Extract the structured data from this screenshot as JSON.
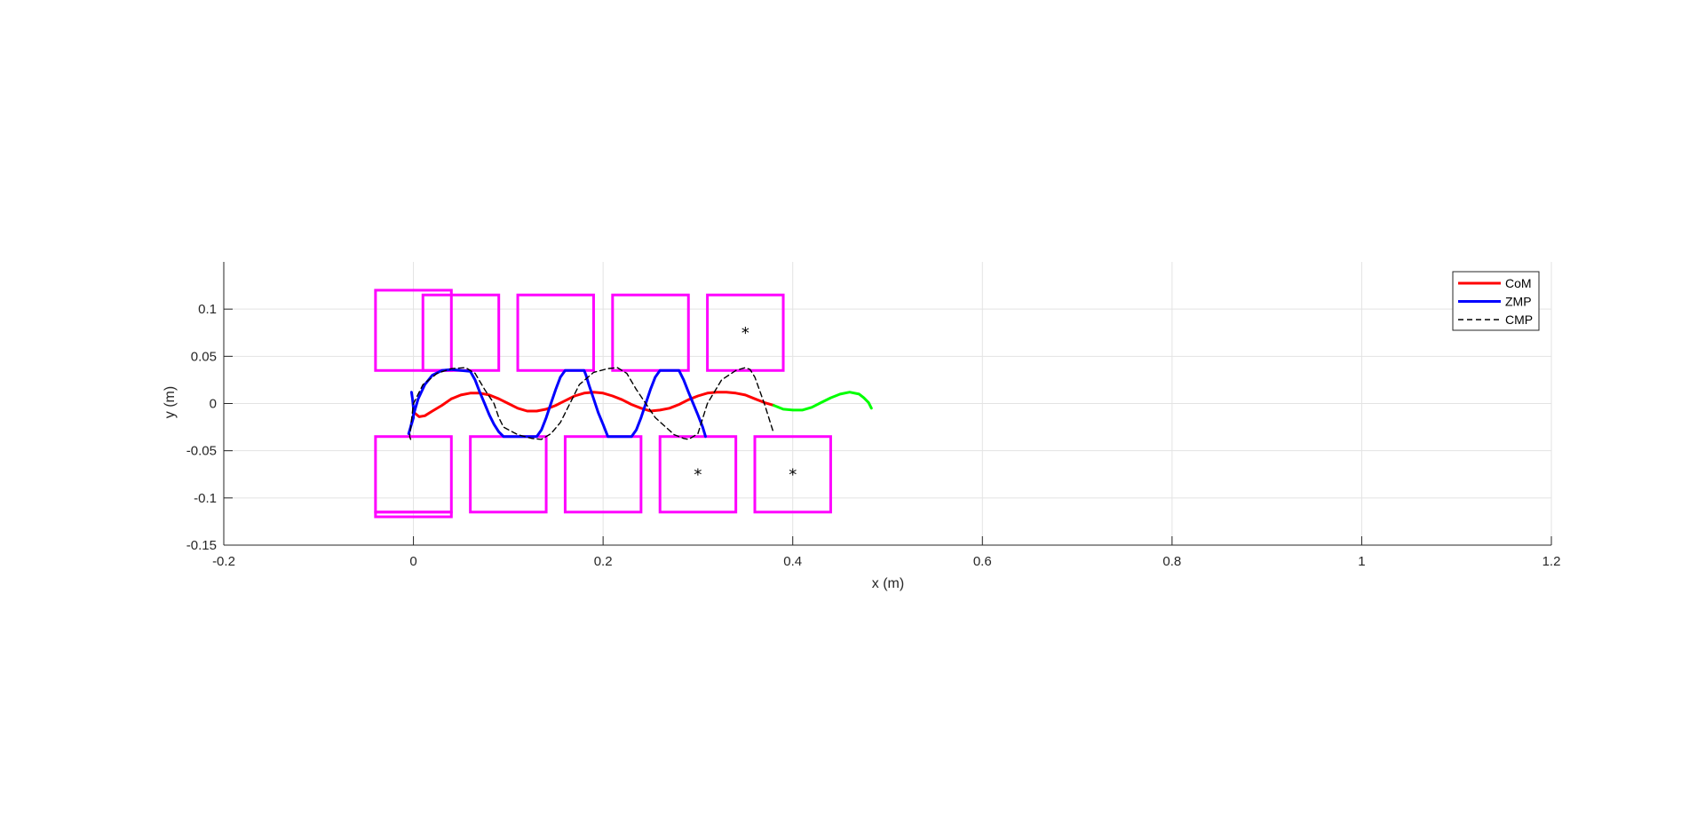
{
  "chart_data": {
    "type": "line",
    "xlabel": "x (m)",
    "ylabel": "y (m)",
    "xlim": [
      -0.2,
      1.2
    ],
    "ylim": [
      -0.15,
      0.15
    ],
    "x_ticks": [
      -0.2,
      0,
      0.2,
      0.4,
      0.6,
      0.8,
      1,
      1.2
    ],
    "x_tick_labels": [
      "-0.2",
      "0",
      "0.2",
      "0.4",
      "0.6",
      "0.8",
      "1",
      "1.2"
    ],
    "y_ticks": [
      0.1,
      0.05,
      0,
      -0.05,
      -0.1,
      -0.15
    ],
    "y_tick_labels": [
      "0.1",
      "0.05",
      "0",
      "-0.05",
      "-0.1",
      "-0.15"
    ],
    "grid": true,
    "legend_position": "top-right",
    "legend": [
      {
        "label": "CoM",
        "color": "#ff0000",
        "style": "solid"
      },
      {
        "label": "ZMP",
        "color": "#0000ff",
        "style": "solid"
      },
      {
        "label": "CMP",
        "color": "#000000",
        "style": "dashed"
      }
    ],
    "colors": {
      "com": "#ff0000",
      "com_preview": "#00ff00",
      "zmp": "#0000ff",
      "cmp": "#000000",
      "footprint": "#ff00ff",
      "marker": "#000000"
    },
    "series": [
      {
        "name": "CoM",
        "type": "line",
        "color": "#ff0000",
        "style": "solid",
        "x": [
          0.0,
          0.006,
          0.012,
          0.02,
          0.03,
          0.04,
          0.05,
          0.06,
          0.07,
          0.08,
          0.09,
          0.1,
          0.11,
          0.12,
          0.13,
          0.14,
          0.15,
          0.16,
          0.17,
          0.18,
          0.19,
          0.2,
          0.21,
          0.22,
          0.23,
          0.24,
          0.25,
          0.26,
          0.27,
          0.28,
          0.29,
          0.3,
          0.31,
          0.32,
          0.33,
          0.34,
          0.35,
          0.36,
          0.37,
          0.38
        ],
        "y": [
          -0.009,
          -0.014,
          -0.013,
          -0.008,
          -0.002,
          0.005,
          0.009,
          0.011,
          0.011,
          0.009,
          0.005,
          0.0,
          -0.005,
          -0.008,
          -0.008,
          -0.006,
          -0.002,
          0.003,
          0.008,
          0.011,
          0.012,
          0.011,
          0.008,
          0.004,
          -0.001,
          -0.005,
          -0.008,
          -0.007,
          -0.005,
          -0.001,
          0.004,
          0.008,
          0.011,
          0.012,
          0.012,
          0.011,
          0.009,
          0.005,
          0.001,
          -0.002
        ]
      },
      {
        "name": "CoM preview",
        "type": "line",
        "color": "#00ff00",
        "style": "solid",
        "x": [
          0.38,
          0.39,
          0.4,
          0.41,
          0.42,
          0.43,
          0.44,
          0.45,
          0.46,
          0.47,
          0.475,
          0.48,
          0.483
        ],
        "y": [
          -0.002,
          -0.006,
          -0.007,
          -0.007,
          -0.004,
          0.001,
          0.006,
          0.01,
          0.012,
          0.01,
          0.006,
          0.001,
          -0.005
        ]
      },
      {
        "name": "ZMP",
        "type": "line",
        "color": "#0000ff",
        "style": "solid",
        "x": [
          -0.002,
          -0.001,
          0.0,
          0.0,
          -0.003,
          -0.005,
          -0.003,
          0.0,
          0.005,
          0.012,
          0.02,
          0.03,
          0.04,
          0.05,
          0.06,
          0.065,
          0.07,
          0.075,
          0.08,
          0.085,
          0.09,
          0.095,
          0.13,
          0.13,
          0.135,
          0.14,
          0.145,
          0.15,
          0.155,
          0.16,
          0.18,
          0.182,
          0.185,
          0.19,
          0.195,
          0.2,
          0.205,
          0.23,
          0.235,
          0.24,
          0.245,
          0.25,
          0.255,
          0.26,
          0.28,
          0.285,
          0.29,
          0.295,
          0.3,
          0.305,
          0.308
        ],
        "y": [
          0.012,
          0.005,
          -0.005,
          -0.015,
          -0.025,
          -0.032,
          -0.025,
          -0.012,
          0.005,
          0.02,
          0.03,
          0.035,
          0.036,
          0.035,
          0.034,
          0.025,
          0.012,
          0.0,
          -0.012,
          -0.022,
          -0.03,
          -0.035,
          -0.035,
          -0.035,
          -0.028,
          -0.015,
          0.0,
          0.015,
          0.028,
          0.035,
          0.035,
          0.03,
          0.02,
          0.005,
          -0.01,
          -0.022,
          -0.035,
          -0.035,
          -0.028,
          -0.015,
          0.0,
          0.015,
          0.028,
          0.035,
          0.035,
          0.025,
          0.012,
          0.0,
          -0.012,
          -0.025,
          -0.035
        ]
      },
      {
        "name": "CMP",
        "type": "line",
        "color": "#000000",
        "style": "dashed",
        "x": [
          -0.003,
          -0.004,
          0.0,
          0.01,
          0.025,
          0.04,
          0.055,
          0.065,
          0.075,
          0.085,
          0.09,
          0.095,
          0.11,
          0.125,
          0.135,
          0.145,
          0.155,
          0.165,
          0.175,
          0.19,
          0.205,
          0.215,
          0.225,
          0.235,
          0.245,
          0.255,
          0.275,
          0.285,
          0.29,
          0.3,
          0.31,
          0.325,
          0.34,
          0.35,
          0.355,
          0.36,
          0.37,
          0.38
        ],
        "y": [
          -0.038,
          -0.035,
          0.0,
          0.02,
          0.032,
          0.037,
          0.038,
          0.032,
          0.015,
          0.0,
          -0.015,
          -0.025,
          -0.033,
          -0.037,
          -0.038,
          -0.032,
          -0.02,
          0.0,
          0.02,
          0.033,
          0.037,
          0.038,
          0.032,
          0.015,
          0.0,
          -0.015,
          -0.033,
          -0.037,
          -0.038,
          -0.032,
          0.0,
          0.025,
          0.035,
          0.038,
          0.036,
          0.028,
          0.0,
          -0.032
        ]
      }
    ],
    "footprints": [
      {
        "x": [
          -0.04,
          0.04
        ],
        "y": [
          0.035,
          0.12
        ]
      },
      {
        "x": [
          -0.04,
          0.04
        ],
        "y": [
          -0.115,
          -0.035
        ]
      },
      {
        "x": [
          -0.04,
          0.04
        ],
        "y": [
          -0.12,
          -0.115
        ]
      },
      {
        "x": [
          0.01,
          0.09
        ],
        "y": [
          0.035,
          0.115
        ]
      },
      {
        "x": [
          0.06,
          0.14
        ],
        "y": [
          -0.115,
          -0.035
        ]
      },
      {
        "x": [
          0.11,
          0.19
        ],
        "y": [
          0.035,
          0.115
        ]
      },
      {
        "x": [
          0.16,
          0.24
        ],
        "y": [
          -0.115,
          -0.035
        ]
      },
      {
        "x": [
          0.21,
          0.29
        ],
        "y": [
          0.035,
          0.115
        ]
      },
      {
        "x": [
          0.26,
          0.34
        ],
        "y": [
          -0.115,
          -0.035
        ]
      },
      {
        "x": [
          0.31,
          0.39
        ],
        "y": [
          0.035,
          0.115
        ]
      },
      {
        "x": [
          0.36,
          0.44
        ],
        "y": [
          -0.115,
          -0.035
        ]
      }
    ],
    "markers": [
      {
        "x": 0.35,
        "y": 0.075
      },
      {
        "x": 0.3,
        "y": -0.075
      },
      {
        "x": 0.4,
        "y": -0.075
      }
    ]
  }
}
